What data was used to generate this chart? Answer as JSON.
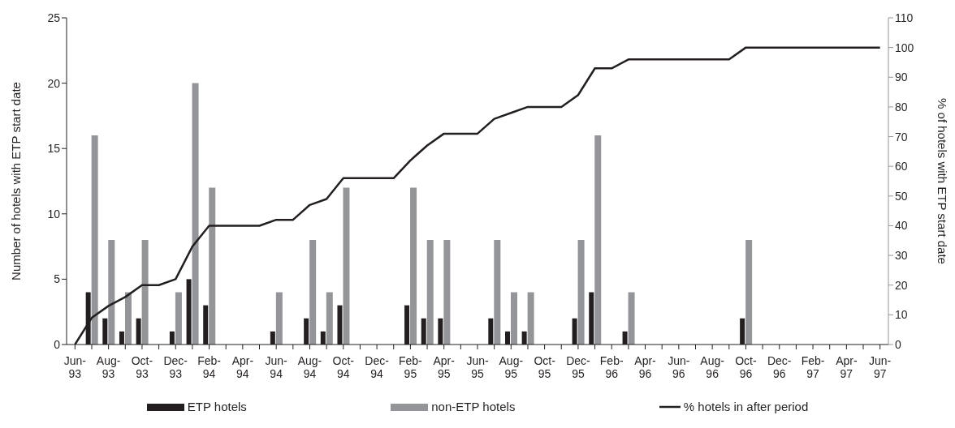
{
  "chart_data": {
    "type": "bar",
    "categories": [
      "Jun-93",
      null,
      "Aug-93",
      null,
      "Oct-93",
      null,
      "Dec-93",
      null,
      "Feb-94",
      null,
      "Apr-94",
      null,
      "Jun-94",
      null,
      "Aug-94",
      null,
      "Oct-94",
      null,
      "Dec-94",
      null,
      "Feb-95",
      null,
      "Apr-95",
      null,
      "Jun-95",
      null,
      "Aug-95",
      null,
      "Oct-95",
      null,
      "Dec-95",
      null,
      "Feb-96",
      null,
      "Apr-96",
      null,
      "Jun-96",
      null,
      "Aug-96",
      null,
      "Oct-96",
      null,
      "Dec-96",
      null,
      "Feb-97",
      null,
      "Apr-97",
      null,
      "Jun-97"
    ],
    "series": [
      {
        "name": "ETP hotels",
        "color": "#231f20",
        "values": [
          0,
          4,
          2,
          1,
          2,
          0,
          1,
          5,
          3,
          0,
          0,
          0,
          1,
          0,
          2,
          1,
          3,
          0,
          0,
          0,
          3,
          2,
          2,
          0,
          0,
          2,
          1,
          1,
          0,
          0,
          2,
          4,
          0,
          1,
          0,
          0,
          0,
          0,
          0,
          0,
          2,
          0,
          0,
          0,
          0,
          0,
          0,
          0,
          0
        ]
      },
      {
        "name": "non-ETP hotels",
        "color": "#939598",
        "values": [
          0,
          16,
          8,
          4,
          8,
          0,
          4,
          20,
          12,
          0,
          0,
          0,
          4,
          0,
          8,
          4,
          12,
          0,
          0,
          0,
          12,
          8,
          8,
          0,
          0,
          8,
          4,
          4,
          0,
          0,
          8,
          16,
          0,
          4,
          0,
          0,
          0,
          0,
          0,
          0,
          8,
          0,
          0,
          0,
          0,
          0,
          0,
          0,
          0
        ]
      },
      {
        "name": "% hotels in after period",
        "type": "line",
        "axis": "y2",
        "color": "#231f20",
        "values": [
          0,
          9,
          13,
          16,
          20,
          20,
          22,
          33,
          40,
          40,
          40,
          40,
          42,
          42,
          47,
          49,
          56,
          56,
          56,
          56,
          62,
          67,
          71,
          71,
          71,
          76,
          78,
          80,
          80,
          80,
          84,
          93,
          93,
          96,
          96,
          96,
          96,
          96,
          96,
          96,
          100,
          100,
          100,
          100,
          100,
          100,
          100,
          100,
          100
        ]
      }
    ],
    "ylabel": "Number of hotels with ETP start date",
    "y2label": "% of hotels with ETP start date",
    "ylim": [
      0,
      25
    ],
    "yticks": [
      0,
      5,
      10,
      15,
      20,
      25
    ],
    "y2lim": [
      0,
      110
    ],
    "y2ticks": [
      0,
      10,
      20,
      30,
      40,
      50,
      60,
      70,
      80,
      90,
      100,
      110
    ],
    "legend": "bottom",
    "marker": "none",
    "line_style": "solid"
  }
}
